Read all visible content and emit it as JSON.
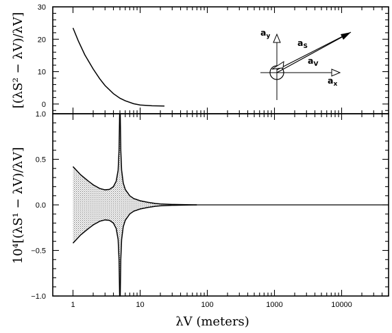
{
  "chart_data": [
    {
      "panel": "top",
      "type": "line",
      "ylabel": "[(λS² − λV)/λV]",
      "xscale": "log",
      "xlim": [
        0.5,
        50000
      ],
      "ylim": [
        -3,
        30
      ],
      "yticks": [
        "0",
        "10",
        "20",
        "30"
      ],
      "series": [
        {
          "x": [
            1,
            1.2,
            1.5,
            2,
            2.5,
            3,
            4,
            5,
            6,
            8,
            10,
            15,
            20,
            23
          ],
          "y": [
            23.5,
            19.5,
            15.2,
            10.8,
            7.8,
            5.7,
            3.2,
            1.8,
            1.0,
            0.1,
            -0.3,
            -0.55,
            -0.6,
            -0.62
          ]
        }
      ],
      "inset": {
        "axis_x_label": "a",
        "axis_x_sub": "x",
        "axis_y_label": "a",
        "axis_y_sub": "y",
        "vector_s_label": "a",
        "vector_s_sub": "S",
        "vector_v_label": "a",
        "vector_v_sub": "V"
      }
    },
    {
      "panel": "bottom",
      "type": "line",
      "ylabel": "10⁴[(λS¹ − λV)/λV]",
      "xlabel": "λV (meters)",
      "xscale": "log",
      "xlim": [
        0.5,
        50000
      ],
      "ylim": [
        -1.0,
        1.0
      ],
      "yticks": [
        "−1.0",
        "−0.5",
        "0.0",
        "0.5",
        "1.0"
      ],
      "xticks": [
        "1",
        "10",
        "100",
        "1000",
        "10000"
      ],
      "series": [
        {
          "name": "upper envelope",
          "x": [
            1,
            1.3,
            1.7,
            2,
            2.5,
            3,
            3.5,
            4,
            4.4,
            4.7,
            4.85,
            4.95,
            5.05,
            5.15,
            5.3,
            5.6,
            6,
            7,
            8,
            10,
            13,
            17,
            20,
            30,
            50,
            70
          ],
          "y": [
            0.42,
            0.33,
            0.26,
            0.22,
            0.18,
            0.165,
            0.17,
            0.2,
            0.26,
            0.38,
            0.6,
            1.0,
            1.0,
            0.6,
            0.38,
            0.24,
            0.17,
            0.1,
            0.07,
            0.045,
            0.028,
            0.015,
            0.01,
            0.005,
            0.002,
            0.0
          ]
        },
        {
          "name": "lower envelope",
          "x": [
            1,
            1.3,
            1.7,
            2,
            2.5,
            3,
            3.5,
            4,
            4.4,
            4.7,
            4.85,
            4.95,
            5.05,
            5.15,
            5.3,
            5.6,
            6,
            7,
            8,
            10,
            13,
            17,
            20,
            30,
            50,
            70
          ],
          "y": [
            -0.42,
            -0.33,
            -0.26,
            -0.22,
            -0.18,
            -0.165,
            -0.17,
            -0.2,
            -0.26,
            -0.38,
            -0.6,
            -1.0,
            -1.0,
            -0.6,
            -0.38,
            -0.24,
            -0.17,
            -0.1,
            -0.07,
            -0.045,
            -0.028,
            -0.015,
            -0.01,
            -0.005,
            -0.002,
            0.0
          ]
        },
        {
          "name": "baseline",
          "x": [
            70,
            50000
          ],
          "y": [
            0,
            0
          ]
        }
      ]
    }
  ]
}
